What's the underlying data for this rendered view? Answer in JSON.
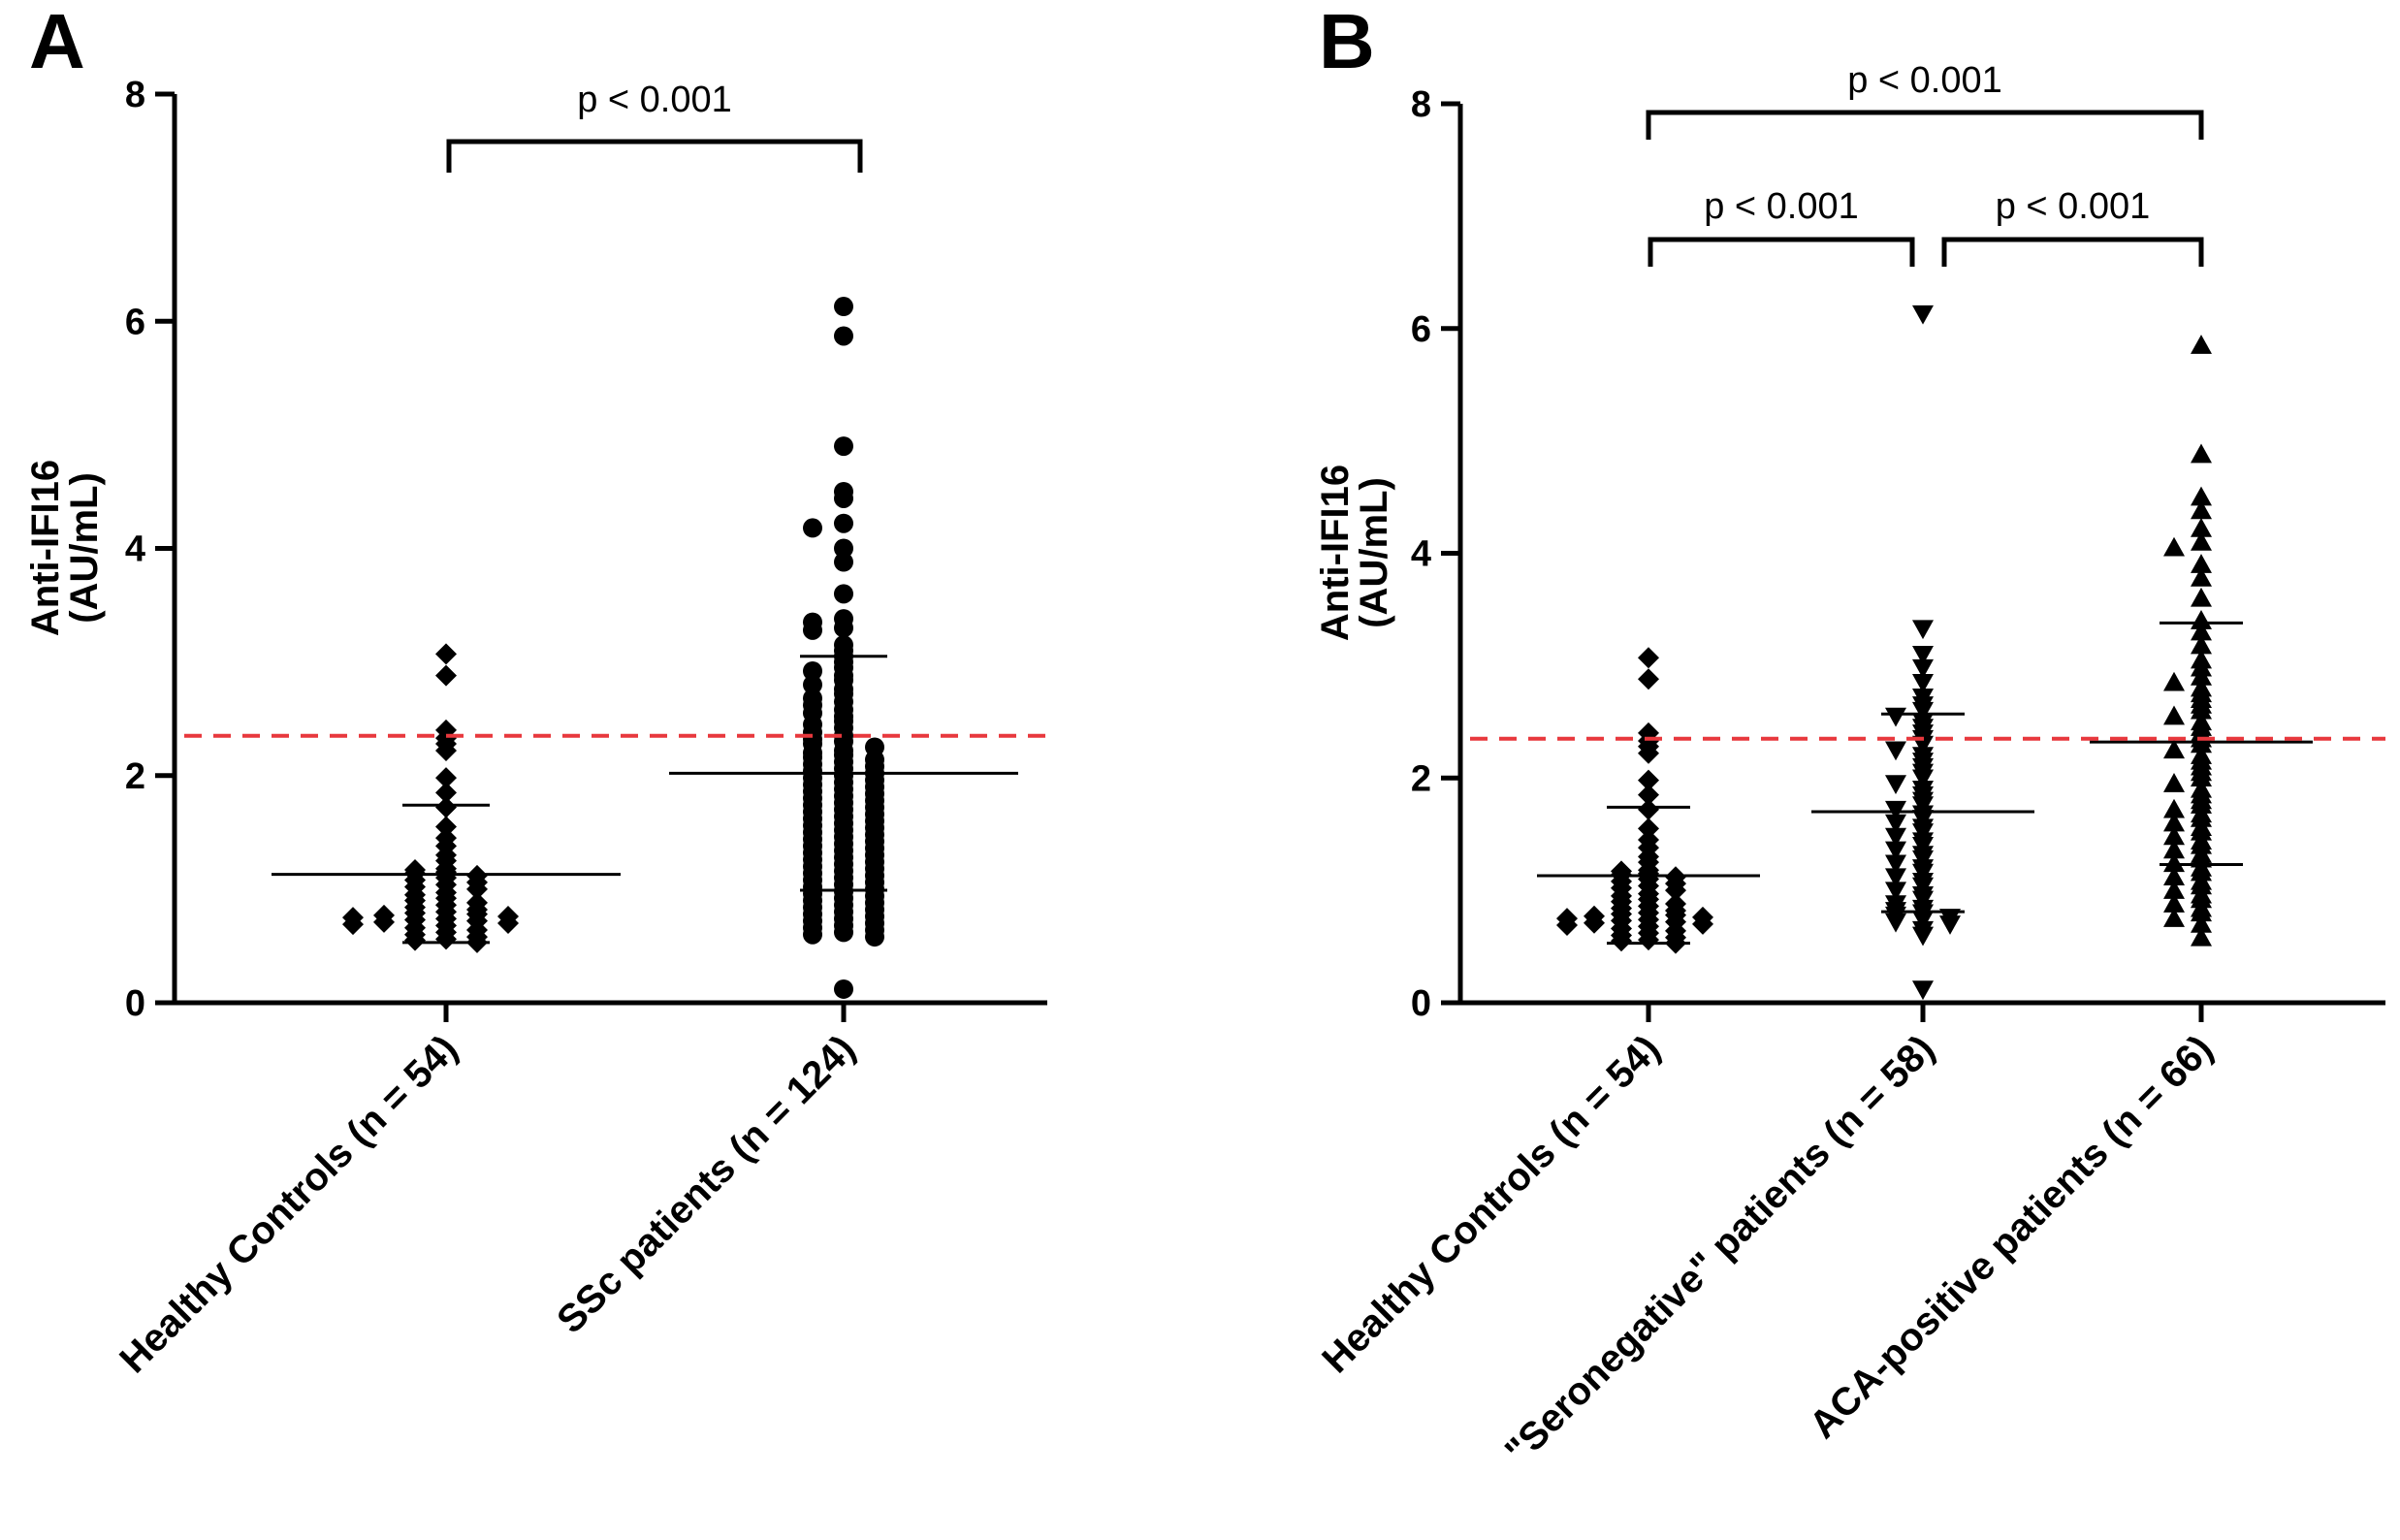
{
  "chart_data": [
    {
      "panel": "A",
      "type": "scatter",
      "subtype": "dot-plot with median and interquartile-range bars",
      "ylabel": [
        "Anti-IFI16",
        "(AU/mL)"
      ],
      "ylim": [
        0,
        8
      ],
      "yticks": [
        0,
        2,
        4,
        6,
        8
      ],
      "cutoff": {
        "value": 2.35,
        "color": "#e8383d",
        "style": "dashed"
      },
      "categories": [
        "Healthy Controls (n = 54)",
        "SSc patients (n = 124)"
      ],
      "series": [
        {
          "name": "Healthy Controls (n = 54)",
          "marker": "diamond",
          "median": 1.13,
          "q1": 0.53,
          "q3": 1.74,
          "values": [
            3.07,
            2.88,
            2.4,
            2.33,
            2.28,
            2.22,
            1.98,
            1.85,
            1.72,
            1.55,
            1.45,
            1.38,
            1.3,
            1.25,
            1.18,
            1.17,
            1.15,
            1.14,
            1.12,
            1.1,
            1.08,
            1.06,
            1.04,
            1.02,
            1.0,
            0.97,
            0.95,
            0.92,
            0.9,
            0.88,
            0.86,
            0.84,
            0.82,
            0.8,
            0.79,
            0.78,
            0.77,
            0.76,
            0.75,
            0.74,
            0.73,
            0.72,
            0.71,
            0.7,
            0.69,
            0.68,
            0.66,
            0.64,
            0.62,
            0.6,
            0.58,
            0.56,
            0.55,
            0.53
          ]
        },
        {
          "name": "SSc patients (n = 124)",
          "marker": "circle",
          "median": 2.02,
          "q1": 0.99,
          "q3": 3.05,
          "values": [
            6.13,
            5.87,
            4.9,
            4.5,
            4.44,
            4.22,
            4.18,
            4.0,
            3.88,
            3.6,
            3.38,
            3.35,
            3.3,
            3.28,
            3.15,
            3.1,
            3.05,
            3.0,
            2.95,
            2.92,
            2.88,
            2.84,
            2.8,
            2.76,
            2.72,
            2.68,
            2.65,
            2.62,
            2.58,
            2.55,
            2.52,
            2.48,
            2.45,
            2.42,
            2.38,
            2.35,
            2.32,
            2.3,
            2.28,
            2.25,
            2.22,
            2.2,
            2.18,
            2.16,
            2.14,
            2.12,
            2.1,
            2.08,
            2.06,
            2.04,
            2.02,
            2.0,
            1.98,
            1.96,
            1.94,
            1.92,
            1.9,
            1.88,
            1.86,
            1.84,
            1.82,
            1.8,
            1.78,
            1.76,
            1.74,
            1.72,
            1.7,
            1.68,
            1.66,
            1.64,
            1.62,
            1.6,
            1.58,
            1.56,
            1.54,
            1.52,
            1.5,
            1.48,
            1.46,
            1.44,
            1.42,
            1.4,
            1.38,
            1.36,
            1.34,
            1.32,
            1.3,
            1.28,
            1.26,
            1.24,
            1.22,
            1.2,
            1.18,
            1.16,
            1.14,
            1.12,
            1.1,
            1.08,
            1.06,
            1.04,
            1.02,
            1.0,
            0.98,
            0.96,
            0.94,
            0.92,
            0.9,
            0.88,
            0.86,
            0.84,
            0.82,
            0.8,
            0.78,
            0.76,
            0.74,
            0.72,
            0.7,
            0.68,
            0.66,
            0.64,
            0.62,
            0.6,
            0.58,
            0.12
          ]
        }
      ],
      "comparisons": [
        {
          "from": 0,
          "to": 1,
          "label": "p < 0.001"
        }
      ]
    },
    {
      "panel": "B",
      "type": "scatter",
      "subtype": "dot-plot with median and interquartile-range bars",
      "ylabel": [
        "Anti-IFI16",
        "(AU/mL)"
      ],
      "ylim": [
        0,
        8
      ],
      "yticks": [
        0,
        2,
        4,
        6,
        8
      ],
      "cutoff": {
        "value": 2.35,
        "color": "#e8383d",
        "style": "dashed"
      },
      "categories": [
        "Healthy Controls (n = 54)",
        "\"Seronegative\" patients (n = 58)",
        "ACA-positive patients (n = 66)"
      ],
      "series": [
        {
          "name": "Healthy Controls (n = 54)",
          "marker": "diamond",
          "median": 1.13,
          "q1": 0.53,
          "q3": 1.74,
          "values": [
            3.07,
            2.88,
            2.4,
            2.33,
            2.28,
            2.22,
            1.98,
            1.85,
            1.72,
            1.55,
            1.45,
            1.38,
            1.3,
            1.25,
            1.18,
            1.17,
            1.15,
            1.14,
            1.12,
            1.1,
            1.08,
            1.06,
            1.04,
            1.02,
            1.0,
            0.97,
            0.95,
            0.92,
            0.9,
            0.88,
            0.86,
            0.84,
            0.82,
            0.8,
            0.79,
            0.78,
            0.77,
            0.76,
            0.75,
            0.74,
            0.73,
            0.72,
            0.71,
            0.7,
            0.69,
            0.68,
            0.66,
            0.64,
            0.62,
            0.6,
            0.58,
            0.56,
            0.55,
            0.53
          ]
        },
        {
          "name": "\"Seronegative\" patients (n = 58)",
          "marker": "triangle-down",
          "median": 1.7,
          "q1": 0.81,
          "q3": 2.57,
          "values": [
            6.13,
            3.33,
            3.1,
            2.98,
            2.85,
            2.72,
            2.65,
            2.6,
            2.55,
            2.5,
            2.45,
            2.4,
            2.35,
            2.3,
            2.25,
            2.2,
            2.15,
            2.1,
            2.05,
            2.0,
            1.95,
            1.9,
            1.85,
            1.8,
            1.76,
            1.72,
            1.68,
            1.64,
            1.6,
            1.56,
            1.52,
            1.48,
            1.44,
            1.4,
            1.36,
            1.32,
            1.28,
            1.24,
            1.2,
            1.16,
            1.12,
            1.08,
            1.04,
            1.0,
            0.96,
            0.92,
            0.88,
            0.84,
            0.82,
            0.8,
            0.78,
            0.76,
            0.74,
            0.72,
            0.7,
            0.65,
            0.6,
            0.12
          ]
        },
        {
          "name": "ACA-positive patients (n = 66)",
          "marker": "triangle-up",
          "median": 2.32,
          "q1": 1.23,
          "q3": 3.38,
          "values": [
            5.85,
            4.88,
            4.5,
            4.38,
            4.22,
            4.1,
            4.05,
            3.9,
            3.78,
            3.6,
            3.4,
            3.3,
            3.18,
            3.05,
            2.98,
            2.9,
            2.85,
            2.8,
            2.75,
            2.7,
            2.65,
            2.6,
            2.55,
            2.5,
            2.45,
            2.4,
            2.35,
            2.3,
            2.25,
            2.2,
            2.15,
            2.1,
            2.05,
            2.0,
            1.95,
            1.9,
            1.85,
            1.8,
            1.76,
            1.72,
            1.68,
            1.64,
            1.6,
            1.56,
            1.52,
            1.48,
            1.44,
            1.4,
            1.36,
            1.32,
            1.28,
            1.24,
            1.2,
            1.16,
            1.12,
            1.08,
            1.04,
            1.0,
            0.96,
            0.92,
            0.88,
            0.84,
            0.8,
            0.75,
            0.7,
            0.58
          ]
        }
      ],
      "comparisons": [
        {
          "from": 0,
          "to": 2,
          "label": "p < 0.001"
        },
        {
          "from": 0,
          "to": 1,
          "label": "p < 0.001"
        },
        {
          "from": 1,
          "to": 2,
          "label": "p < 0.001"
        }
      ]
    }
  ]
}
